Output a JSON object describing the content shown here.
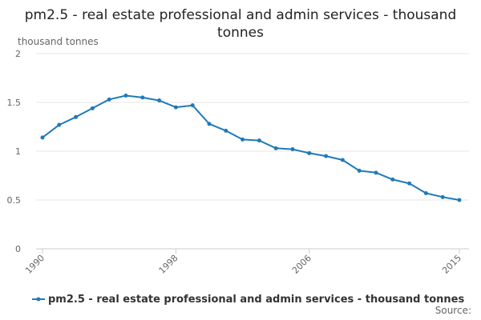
{
  "chart_data": {
    "type": "line",
    "title": "pm2.5 - real estate professional and admin services - thousand tonnes",
    "ylabel": "thousand tonnes",
    "xlabel": "",
    "ylim": [
      0,
      2
    ],
    "yticks": [
      0,
      0.5,
      1,
      1.5,
      2
    ],
    "ytick_labels": [
      "0",
      "0.5",
      "1",
      "1.5",
      "2"
    ],
    "xlim": [
      1990,
      2015
    ],
    "xticks": [
      1990,
      1998,
      2006,
      2015
    ],
    "xtick_labels": [
      "1990",
      "1998",
      "2006",
      "2015"
    ],
    "grid": true,
    "legend_position": "bottom",
    "series": [
      {
        "name": "pm2.5 - real estate professional and admin services - thousand tonnes",
        "color": "#1f7ab8",
        "x": [
          1990,
          1991,
          1992,
          1993,
          1994,
          1995,
          1996,
          1997,
          1998,
          1999,
          2000,
          2001,
          2002,
          2003,
          2004,
          2005,
          2006,
          2007,
          2008,
          2009,
          2010,
          2011,
          2012,
          2013,
          2014,
          2015
        ],
        "values": [
          1.14,
          1.27,
          1.35,
          1.44,
          1.53,
          1.57,
          1.55,
          1.52,
          1.45,
          1.47,
          1.28,
          1.21,
          1.12,
          1.11,
          1.03,
          1.02,
          0.98,
          0.95,
          0.91,
          0.8,
          0.78,
          0.71,
          0.67,
          0.57,
          0.53,
          0.5
        ]
      }
    ],
    "source_label": "Source:"
  }
}
